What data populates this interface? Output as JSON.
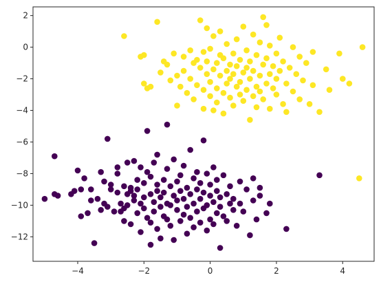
{
  "chart_data": {
    "type": "scatter",
    "title": "",
    "xlabel": "",
    "ylabel": "",
    "xlim": [
      -5.35,
      4.95
    ],
    "ylim": [
      -13.55,
      2.55
    ],
    "xticks": [
      -4,
      -2,
      0,
      2,
      4
    ],
    "yticks": [
      2,
      0,
      -2,
      -4,
      -6,
      -8,
      -10,
      -12
    ],
    "xtick_labels": [
      "−4",
      "−2",
      "0",
      "2",
      "4"
    ],
    "ytick_labels": [
      "2",
      "0",
      "−2",
      "−4",
      "−6",
      "−8",
      "−10",
      "−12"
    ],
    "grid": false,
    "legend": false,
    "series": [
      {
        "color": "#440154",
        "points": [
          [
            -5.0,
            -9.6
          ],
          [
            -4.7,
            -6.9
          ],
          [
            -4.7,
            -9.3
          ],
          [
            -4.6,
            -9.4
          ],
          [
            -4.2,
            -9.3
          ],
          [
            -4.1,
            -9.1
          ],
          [
            -4.0,
            -7.8
          ],
          [
            -3.9,
            -10.7
          ],
          [
            -3.9,
            -9.0
          ],
          [
            -3.8,
            -8.3
          ],
          [
            -3.7,
            -10.5
          ],
          [
            -3.6,
            -9.0
          ],
          [
            -3.6,
            -9.7
          ],
          [
            -3.5,
            -12.4
          ],
          [
            -3.4,
            -9.6
          ],
          [
            -3.3,
            -7.9
          ],
          [
            -3.3,
            -10.3
          ],
          [
            -3.2,
            -8.5
          ],
          [
            -3.2,
            -9.9
          ],
          [
            -3.1,
            -10.1
          ],
          [
            -3.1,
            -5.8
          ],
          [
            -3.0,
            -8.7
          ],
          [
            -3.0,
            -9.0
          ],
          [
            -2.9,
            -10.4
          ],
          [
            -2.8,
            -8.0
          ],
          [
            -2.8,
            -9.2
          ],
          [
            -2.8,
            -7.6
          ],
          [
            -2.7,
            -9.9
          ],
          [
            -2.7,
            -10.4
          ],
          [
            -2.6,
            -10.2
          ],
          [
            -2.6,
            -8.8
          ],
          [
            -2.6,
            -11.0
          ],
          [
            -2.5,
            -9.3
          ],
          [
            -2.5,
            -7.3
          ],
          [
            -2.5,
            -10.0
          ],
          [
            -2.4,
            -9.1
          ],
          [
            -2.4,
            -8.9
          ],
          [
            -2.4,
            -11.2
          ],
          [
            -2.3,
            -9.4
          ],
          [
            -2.3,
            -7.2
          ],
          [
            -2.3,
            -9.7
          ],
          [
            -2.2,
            -8.4
          ],
          [
            -2.2,
            -10.5
          ],
          [
            -2.2,
            -9.0
          ],
          [
            -2.1,
            -7.6
          ],
          [
            -2.1,
            -11.7
          ],
          [
            -2.1,
            -9.9
          ],
          [
            -2.0,
            -8.6
          ],
          [
            -2.0,
            -10.2
          ],
          [
            -2.0,
            -9.5
          ],
          [
            -1.9,
            -7.9
          ],
          [
            -1.9,
            -10.8
          ],
          [
            -1.9,
            -5.3
          ],
          [
            -1.8,
            -9.3
          ],
          [
            -1.8,
            -11.1
          ],
          [
            -1.8,
            -8.2
          ],
          [
            -1.8,
            -12.5
          ],
          [
            -1.7,
            -9.8
          ],
          [
            -1.7,
            -10.4
          ],
          [
            -1.7,
            -7.3
          ],
          [
            -1.6,
            -9.1
          ],
          [
            -1.6,
            -11.5
          ],
          [
            -1.6,
            -8.7
          ],
          [
            -1.6,
            -6.8
          ],
          [
            -1.5,
            -10.1
          ],
          [
            -1.5,
            -9.5
          ],
          [
            -1.5,
            -12.1
          ],
          [
            -1.4,
            -8.4
          ],
          [
            -1.4,
            -10.7
          ],
          [
            -1.4,
            -9.2
          ],
          [
            -1.3,
            -7.7
          ],
          [
            -1.3,
            -10.9
          ],
          [
            -1.3,
            -9.9
          ],
          [
            -1.3,
            -4.9
          ],
          [
            -1.2,
            -8.8
          ],
          [
            -1.2,
            -11.3
          ],
          [
            -1.2,
            -10.0
          ],
          [
            -1.1,
            -9.4
          ],
          [
            -1.1,
            -7.1
          ],
          [
            -1.1,
            -12.2
          ],
          [
            -1.0,
            -10.3
          ],
          [
            -1.0,
            -8.5
          ],
          [
            -1.0,
            -9.7
          ],
          [
            -0.9,
            -11.0
          ],
          [
            -0.9,
            -8.1
          ],
          [
            -0.9,
            -9.1
          ],
          [
            -0.8,
            -10.6
          ],
          [
            -0.8,
            -7.5
          ],
          [
            -0.8,
            -9.6
          ],
          [
            -0.7,
            -11.8
          ],
          [
            -0.7,
            -8.9
          ],
          [
            -0.7,
            -10.1
          ],
          [
            -0.6,
            -9.3
          ],
          [
            -0.6,
            -6.5
          ],
          [
            -0.6,
            -10.8
          ],
          [
            -0.5,
            -8.3
          ],
          [
            -0.5,
            -9.9
          ],
          [
            -0.5,
            -11.4
          ],
          [
            -0.4,
            -9.0
          ],
          [
            -0.4,
            -10.4
          ],
          [
            -0.4,
            -7.9
          ],
          [
            -0.3,
            -9.6
          ],
          [
            -0.3,
            -11.1
          ],
          [
            -0.3,
            -8.6
          ],
          [
            -0.2,
            -10.2
          ],
          [
            -0.2,
            -5.9
          ],
          [
            -0.2,
            -9.2
          ],
          [
            -0.1,
            -11.6
          ],
          [
            -0.1,
            -8.0
          ],
          [
            -0.1,
            -10.0
          ],
          [
            0.0,
            -9.4
          ],
          [
            0.0,
            -10.9
          ],
          [
            0.0,
            -8.7
          ],
          [
            0.1,
            -9.8
          ],
          [
            0.1,
            -7.6
          ],
          [
            0.1,
            -11.2
          ],
          [
            0.2,
            -10.5
          ],
          [
            0.2,
            -8.4
          ],
          [
            0.2,
            -9.1
          ],
          [
            0.3,
            -12.7
          ],
          [
            0.3,
            -10.1
          ],
          [
            0.3,
            -9.5
          ],
          [
            0.4,
            -8.1
          ],
          [
            0.4,
            -10.7
          ],
          [
            0.5,
            -9.3
          ],
          [
            0.5,
            -11.0
          ],
          [
            0.6,
            -9.9
          ],
          [
            0.6,
            -8.8
          ],
          [
            0.7,
            -10.3
          ],
          [
            0.7,
            -9.6
          ],
          [
            0.8,
            -11.3
          ],
          [
            0.9,
            -8.5
          ],
          [
            0.9,
            -9.9
          ],
          [
            1.0,
            -10.4
          ],
          [
            1.1,
            -9.0
          ],
          [
            1.2,
            -11.9
          ],
          [
            1.3,
            -9.7
          ],
          [
            1.3,
            -8.3
          ],
          [
            1.4,
            -10.9
          ],
          [
            1.5,
            -9.4
          ],
          [
            1.5,
            -8.9
          ],
          [
            1.7,
            -10.5
          ],
          [
            1.8,
            -9.9
          ],
          [
            2.3,
            -11.5
          ],
          [
            3.3,
            -8.1
          ]
        ]
      },
      {
        "color": "#fde725",
        "points": [
          [
            -2.6,
            0.7
          ],
          [
            -2.1,
            -0.6
          ],
          [
            -2.0,
            -0.5
          ],
          [
            -2.0,
            -2.3
          ],
          [
            -1.9,
            -2.6
          ],
          [
            -1.8,
            -2.5
          ],
          [
            -1.6,
            1.6
          ],
          [
            -1.5,
            -1.6
          ],
          [
            -1.4,
            -0.9
          ],
          [
            -1.3,
            -1.1
          ],
          [
            -1.2,
            -2.1
          ],
          [
            -1.1,
            -0.4
          ],
          [
            -1.0,
            -1.8
          ],
          [
            -1.0,
            -3.7
          ],
          [
            -0.9,
            -2.5
          ],
          [
            -0.8,
            -0.6
          ],
          [
            -0.8,
            -1.5
          ],
          [
            -0.7,
            -2.9
          ],
          [
            -0.6,
            -0.2
          ],
          [
            -0.6,
            -2.0
          ],
          [
            -0.5,
            -1.0
          ],
          [
            -0.5,
            -3.3
          ],
          [
            -0.4,
            -0.8
          ],
          [
            -0.4,
            -2.4
          ],
          [
            -0.3,
            1.7
          ],
          [
            -0.3,
            -1.3
          ],
          [
            -0.2,
            -0.3
          ],
          [
            -0.2,
            -2.7
          ],
          [
            -0.2,
            -3.9
          ],
          [
            -0.1,
            -1.7
          ],
          [
            -0.1,
            1.2
          ],
          [
            -0.1,
            -0.9
          ],
          [
            0.0,
            -2.2
          ],
          [
            0.0,
            -3.1
          ],
          [
            0.0,
            -0.1
          ],
          [
            0.1,
            -1.4
          ],
          [
            0.1,
            -4.0
          ],
          [
            0.1,
            0.7
          ],
          [
            0.2,
            -2.6
          ],
          [
            0.2,
            -1.0
          ],
          [
            0.2,
            -3.5
          ],
          [
            0.3,
            -0.5
          ],
          [
            0.3,
            -1.8
          ],
          [
            0.3,
            1.0
          ],
          [
            0.4,
            -2.9
          ],
          [
            0.4,
            -0.7
          ],
          [
            0.4,
            -4.2
          ],
          [
            0.5,
            -1.5
          ],
          [
            0.5,
            -2.3
          ],
          [
            0.5,
            0.2
          ],
          [
            0.6,
            -3.2
          ],
          [
            0.6,
            -1.1
          ],
          [
            0.6,
            -2.0
          ],
          [
            0.7,
            -0.4
          ],
          [
            0.7,
            -3.7
          ],
          [
            0.7,
            -1.7
          ],
          [
            0.8,
            0.5
          ],
          [
            0.8,
            -2.5
          ],
          [
            0.8,
            -1.2
          ],
          [
            0.9,
            -3.0
          ],
          [
            0.9,
            -0.8
          ],
          [
            0.9,
            -2.2
          ],
          [
            1.0,
            1.3
          ],
          [
            1.0,
            -1.6
          ],
          [
            1.0,
            -3.4
          ],
          [
            1.1,
            -0.2
          ],
          [
            1.1,
            -2.7
          ],
          [
            1.1,
            -1.3
          ],
          [
            1.2,
            -4.6
          ],
          [
            1.2,
            -0.9
          ],
          [
            1.2,
            -2.0
          ],
          [
            1.3,
            0.8
          ],
          [
            1.3,
            -3.1
          ],
          [
            1.3,
            -1.5
          ],
          [
            1.4,
            -2.5
          ],
          [
            1.4,
            -0.5
          ],
          [
            1.4,
            -3.8
          ],
          [
            1.5,
            -1.8
          ],
          [
            1.5,
            0.3
          ],
          [
            1.5,
            -2.8
          ],
          [
            1.6,
            -1.1
          ],
          [
            1.6,
            1.9
          ],
          [
            1.6,
            -3.3
          ],
          [
            1.7,
            -0.7
          ],
          [
            1.7,
            -2.3
          ],
          [
            1.7,
            1.4
          ],
          [
            1.8,
            -1.7
          ],
          [
            1.8,
            -3.9
          ],
          [
            1.8,
            0.1
          ],
          [
            1.9,
            -2.6
          ],
          [
            1.9,
            -1.2
          ],
          [
            2.0,
            -3.0
          ],
          [
            2.0,
            -0.4
          ],
          [
            2.0,
            -2.0
          ],
          [
            2.1,
            0.6
          ],
          [
            2.1,
            -1.5
          ],
          [
            2.2,
            -3.6
          ],
          [
            2.2,
            -0.9
          ],
          [
            2.3,
            -2.3
          ],
          [
            2.3,
            -4.1
          ],
          [
            2.4,
            -1.3
          ],
          [
            2.5,
            0.0
          ],
          [
            2.5,
            -2.8
          ],
          [
            2.6,
            -1.7
          ],
          [
            2.7,
            -0.6
          ],
          [
            2.7,
            -3.3
          ],
          [
            2.8,
            -2.1
          ],
          [
            2.9,
            -1.0
          ],
          [
            3.0,
            -3.6
          ],
          [
            3.1,
            -0.3
          ],
          [
            3.1,
            -2.4
          ],
          [
            3.3,
            -4.1
          ],
          [
            3.5,
            -1.4
          ],
          [
            3.6,
            -2.7
          ],
          [
            3.9,
            -0.4
          ],
          [
            4.0,
            -2.0
          ],
          [
            4.2,
            -2.3
          ],
          [
            4.5,
            -8.3
          ],
          [
            4.6,
            0.0
          ]
        ]
      }
    ]
  }
}
